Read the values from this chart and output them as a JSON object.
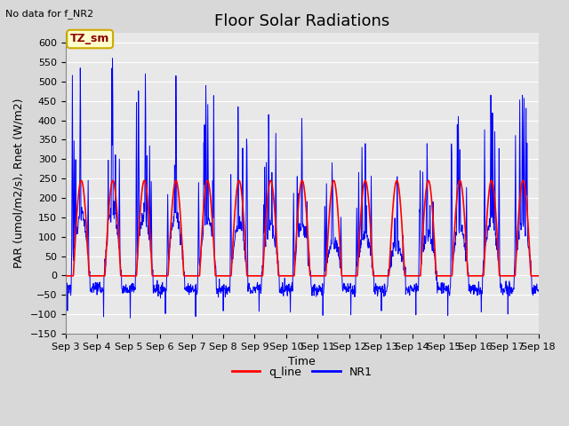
{
  "title": "Floor Solar Radiations",
  "subtitle": "No data for f_NR2",
  "xlabel": "Time",
  "ylabel": "PAR (umol/m2/s), Rnet (W/m2)",
  "ylim": [
    -150,
    625
  ],
  "yticks": [
    -150,
    -100,
    -50,
    0,
    50,
    100,
    150,
    200,
    250,
    300,
    350,
    400,
    450,
    500,
    550,
    600
  ],
  "xtick_labels": [
    "Sep 3",
    "Sep 4",
    "Sep 5",
    "Sep 6",
    "Sep 7",
    "Sep 8",
    "Sep 9",
    "Sep 10",
    "Sep 11",
    "Sep 12",
    "Sep 13",
    "Sep 14",
    "Sep 15",
    "Sep 16",
    "Sep 17",
    "Sep 18"
  ],
  "legend_entries": [
    "q_line",
    "NR1"
  ],
  "legend_colors": [
    "#ff0000",
    "#0000ff"
  ],
  "q_line_color": "#ff0000",
  "NR1_color": "#0000ff",
  "background_color": "#d8d8d8",
  "plot_bg_color": "#e8e8e8",
  "grid_color": "#ffffff",
  "annotation_text": "TZ_sm",
  "annotation_bg": "#ffffcc",
  "annotation_border": "#ccaa00",
  "title_fontsize": 13,
  "label_fontsize": 9,
  "tick_fontsize": 8,
  "n_days": 15,
  "pts_per_day": 96,
  "day_peaks": [
    535,
    560,
    520,
    515,
    490,
    435,
    415,
    405,
    290,
    340,
    255,
    340,
    410,
    465,
    465
  ],
  "night_level": -35,
  "night_noise": 8,
  "q_day_level": 250,
  "q_night_level": -2
}
